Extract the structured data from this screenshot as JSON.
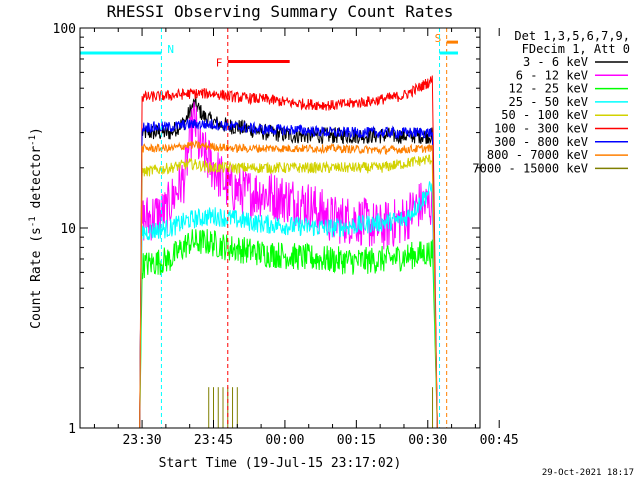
{
  "chart_data": {
    "type": "line",
    "title": "RHESSI Observing Summary Count Rates",
    "xlabel": "Start Time (19-Jul-15 23:17:02)",
    "ylabel": "Count Rate (s",
    "ylabel_sup": "-1",
    "ylabel_tail": " detector",
    "ylabel_tail_sup": "-1",
    "ylabel_end": ")",
    "y_scale": "log",
    "ylim": [
      1,
      100
    ],
    "xlim_minutes": [
      -13.033,
      70.967
    ],
    "x_ticks": [
      "23:30",
      "23:45",
      "00:00",
      "00:15",
      "00:30",
      "00:45"
    ],
    "x_tick_minutes": [
      0,
      15,
      30,
      45,
      60,
      75
    ],
    "y_ticks": [
      "1",
      "10",
      "100"
    ],
    "y_tick_values": [
      1,
      10,
      100
    ],
    "legend_header": [
      "Det 1,3,5,6,7,9,",
      "FDecim 1, Att 0"
    ],
    "legend_position": "right",
    "footer_date": "29-Oct-2021 18:17",
    "series": [
      {
        "name": "3 - 6 keV",
        "color": "#000000",
        "profile": [
          [
            -0.5,
            0
          ],
          [
            0,
            30
          ],
          [
            6,
            30
          ],
          [
            9,
            34
          ],
          [
            11,
            42
          ],
          [
            13,
            36
          ],
          [
            16,
            33
          ],
          [
            20,
            32
          ],
          [
            26,
            30
          ],
          [
            32,
            29
          ],
          [
            38,
            29
          ],
          [
            45,
            29
          ],
          [
            54,
            29
          ],
          [
            61,
            29
          ],
          [
            62,
            0
          ]
        ],
        "noise": 0.06
      },
      {
        "name": "6 - 12 keV",
        "color": "#ff00ff",
        "profile": [
          [
            -0.5,
            0
          ],
          [
            0,
            11
          ],
          [
            5,
            12
          ],
          [
            9,
            18
          ],
          [
            11,
            35
          ],
          [
            12,
            25
          ],
          [
            15,
            20
          ],
          [
            18,
            16
          ],
          [
            22,
            15
          ],
          [
            25,
            15
          ],
          [
            30,
            14
          ],
          [
            35,
            13
          ],
          [
            40,
            11
          ],
          [
            45,
            11
          ],
          [
            50,
            10
          ],
          [
            55,
            11
          ],
          [
            58,
            13
          ],
          [
            61,
            13
          ],
          [
            62,
            0
          ]
        ],
        "noise": 0.18
      },
      {
        "name": "12 - 25 keV",
        "color": "#00ff00",
        "profile": [
          [
            -0.5,
            0
          ],
          [
            0,
            6.5
          ],
          [
            6,
            7
          ],
          [
            10,
            8.5
          ],
          [
            14,
            8.5
          ],
          [
            18,
            8
          ],
          [
            25,
            7.5
          ],
          [
            32,
            7.2
          ],
          [
            38,
            7
          ],
          [
            45,
            6.8
          ],
          [
            52,
            7
          ],
          [
            60,
            7.5
          ],
          [
            61,
            7.5
          ],
          [
            62,
            0
          ]
        ],
        "noise": 0.1
      },
      {
        "name": "25 - 50 keV",
        "color": "#00ffff",
        "profile": [
          [
            -0.5,
            0
          ],
          [
            0,
            9.5
          ],
          [
            6,
            10
          ],
          [
            10,
            11
          ],
          [
            15,
            11.5
          ],
          [
            20,
            11
          ],
          [
            25,
            10.5
          ],
          [
            32,
            10.2
          ],
          [
            40,
            10
          ],
          [
            48,
            10.5
          ],
          [
            55,
            11
          ],
          [
            58,
            13
          ],
          [
            61,
            16
          ],
          [
            62,
            0
          ]
        ],
        "noise": 0.07
      },
      {
        "name": "50 - 100 keV",
        "color": "#d2d200",
        "profile": [
          [
            -0.5,
            0
          ],
          [
            0,
            19
          ],
          [
            6,
            20
          ],
          [
            10,
            21
          ],
          [
            15,
            20
          ],
          [
            20,
            20
          ],
          [
            30,
            20
          ],
          [
            40,
            20
          ],
          [
            50,
            20
          ],
          [
            55,
            21
          ],
          [
            60,
            22
          ],
          [
            61,
            22
          ],
          [
            62,
            0
          ]
        ],
        "noise": 0.04
      },
      {
        "name": "100 - 300 keV",
        "color": "#ff0000",
        "profile": [
          [
            -0.5,
            0
          ],
          [
            0,
            45
          ],
          [
            6,
            46
          ],
          [
            10,
            47
          ],
          [
            15,
            47
          ],
          [
            20,
            45
          ],
          [
            26,
            44
          ],
          [
            32,
            42
          ],
          [
            40,
            41
          ],
          [
            48,
            43
          ],
          [
            55,
            46
          ],
          [
            58,
            50
          ],
          [
            61,
            55
          ],
          [
            62,
            0
          ]
        ],
        "noise": 0.04
      },
      {
        "name": "300 - 800 keV",
        "color": "#0000ff",
        "profile": [
          [
            -0.5,
            0
          ],
          [
            0,
            32
          ],
          [
            6,
            32
          ],
          [
            10,
            33
          ],
          [
            15,
            33
          ],
          [
            20,
            32
          ],
          [
            26,
            31
          ],
          [
            32,
            31
          ],
          [
            40,
            30
          ],
          [
            48,
            30
          ],
          [
            55,
            30
          ],
          [
            61,
            30
          ],
          [
            62,
            0
          ]
        ],
        "noise": 0.04
      },
      {
        "name": "800 - 7000 keV",
        "color": "#ff7f00",
        "profile": [
          [
            -0.5,
            0
          ],
          [
            0,
            25
          ],
          [
            6,
            25
          ],
          [
            10,
            26
          ],
          [
            20,
            25
          ],
          [
            30,
            25
          ],
          [
            40,
            25
          ],
          [
            50,
            24.5
          ],
          [
            61,
            25
          ],
          [
            62,
            0
          ]
        ],
        "noise": 0.03
      },
      {
        "name": "7000 - 15000 keV",
        "color": "#7f7f00",
        "profile": [
          [
            -0.5,
            0
          ],
          [
            62,
            0
          ]
        ],
        "noise": 0,
        "spikes": [
          [
            14,
            1.6
          ],
          [
            15,
            1.6
          ],
          [
            16,
            1.6
          ],
          [
            17,
            1.6
          ],
          [
            18,
            1.6
          ],
          [
            19,
            1.6
          ],
          [
            20,
            1.6
          ],
          [
            61,
            1.6
          ]
        ]
      }
    ],
    "annotations": [
      {
        "label": "N",
        "color": "#00ffff",
        "x_minutes": 4.067,
        "bar_from": -13.033,
        "bar_to": 4.067,
        "bar_y": 75
      },
      {
        "label": "F",
        "color": "#ff0000",
        "x_minutes": 18,
        "bar_from": 18,
        "bar_to": 31,
        "bar_y": 68
      },
      {
        "label": "S",
        "color": "#ff7f00",
        "x_minutes": 63.967,
        "bar_from": 63.967,
        "bar_to": 79.967,
        "bar_y": 85
      },
      {
        "label": "",
        "color": "#00ffff",
        "x_minutes": 62.467,
        "bar_from": 62.467,
        "bar_to": 79.967,
        "bar_y": 75
      }
    ]
  }
}
